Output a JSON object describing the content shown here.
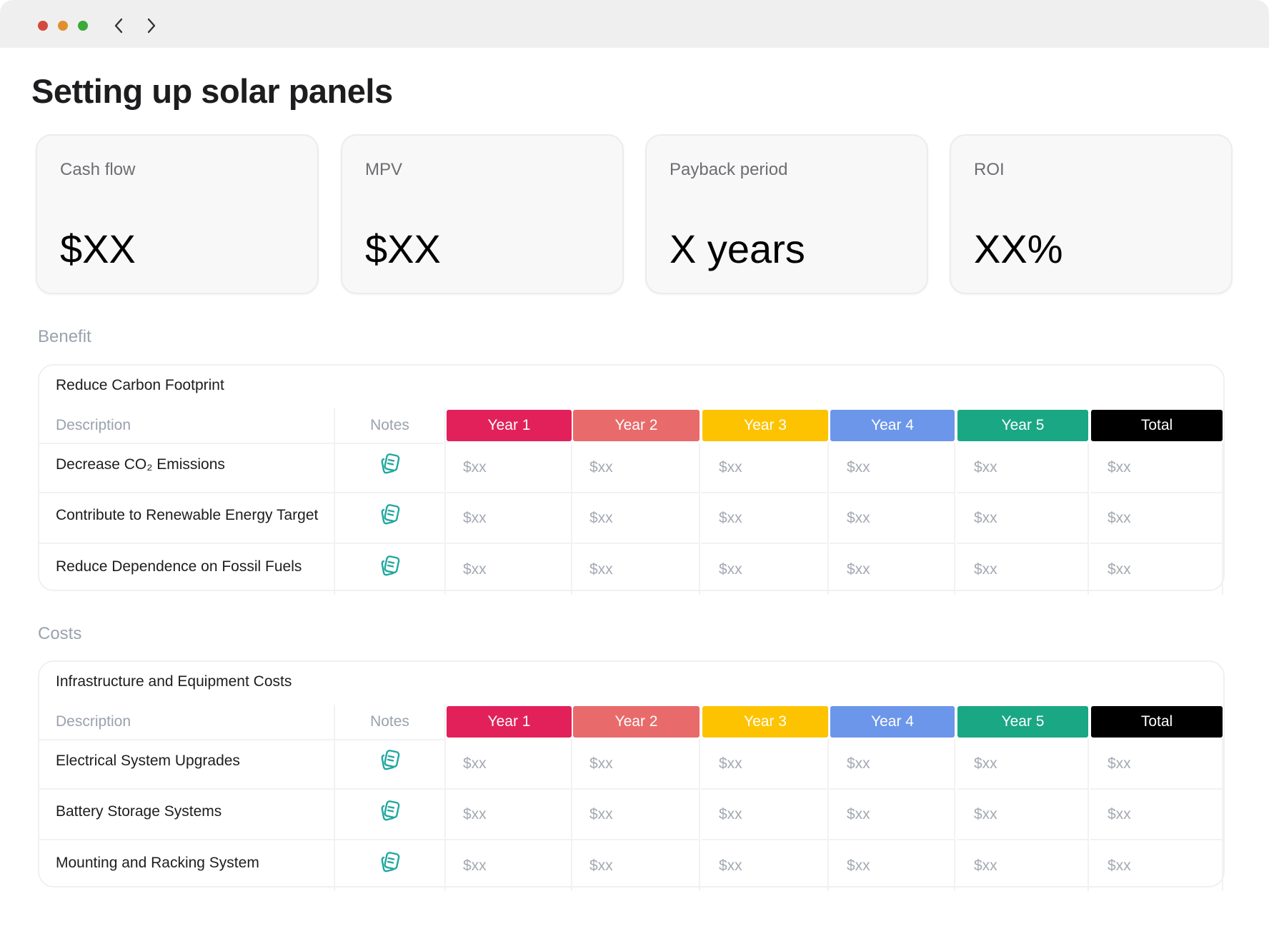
{
  "header": {
    "title": "Setting up solar panels"
  },
  "cards": [
    {
      "label": "Cash flow",
      "value": "$XX"
    },
    {
      "label": "MPV",
      "value": "$XX"
    },
    {
      "label": "Payback period",
      "value": "X years"
    },
    {
      "label": "ROI",
      "value": "XX%"
    }
  ],
  "sections": [
    {
      "heading": "Benefit",
      "table": {
        "title": "Reduce Carbon Footprint",
        "columns": {
          "description": "Description",
          "notes": "Notes",
          "periods": [
            {
              "label": "Year 1",
              "color": "#e2215a"
            },
            {
              "label": "Year 2",
              "color": "#e96a6a"
            },
            {
              "label": "Year 3",
              "color": "#fdc300"
            },
            {
              "label": "Year 4",
              "color": "#6b96ea"
            },
            {
              "label": "Year 5",
              "color": "#19a784"
            },
            {
              "label": "Total",
              "color": "#000000"
            }
          ]
        },
        "rows": [
          [
            "Decrease CO₂ Emissions",
            "$xx",
            "$xx",
            "$xx",
            "$xx",
            "$xx",
            "$xx"
          ],
          [
            "Contribute to Renewable Energy Target",
            "$xx",
            "$xx",
            "$xx",
            "$xx",
            "$xx",
            "$xx"
          ],
          [
            "Reduce Dependence on Fossil Fuels",
            "$xx",
            "$xx",
            "$xx",
            "$xx",
            "$xx",
            "$xx"
          ]
        ]
      }
    },
    {
      "heading": "Costs",
      "table": {
        "title": "Infrastructure and Equipment Costs",
        "columns": {
          "description": "Description",
          "notes": "Notes",
          "periods": [
            {
              "label": "Year 1",
              "color": "#e2215a"
            },
            {
              "label": "Year 2",
              "color": "#e96a6a"
            },
            {
              "label": "Year 3",
              "color": "#fdc300"
            },
            {
              "label": "Year 4",
              "color": "#6b96ea"
            },
            {
              "label": "Year 5",
              "color": "#19a784"
            },
            {
              "label": "Total",
              "color": "#000000"
            }
          ]
        },
        "rows": [
          [
            "Electrical System Upgrades",
            "$xx",
            "$xx",
            "$xx",
            "$xx",
            "$xx",
            "$xx"
          ],
          [
            "Battery Storage Systems",
            "$xx",
            "$xx",
            "$xx",
            "$xx",
            "$xx",
            "$xx"
          ],
          [
            "Mounting and Racking System",
            "$xx",
            "$xx",
            "$xx",
            "$xx",
            "$xx",
            "$xx"
          ]
        ]
      }
    }
  ]
}
